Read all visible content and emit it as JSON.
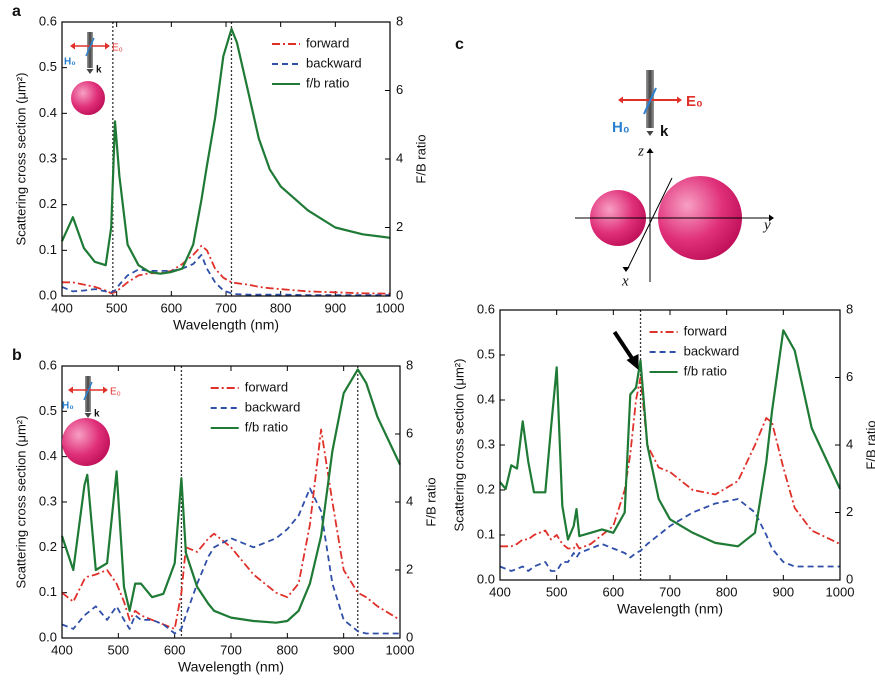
{
  "chart_data": [
    {
      "type": "line",
      "panel": "a",
      "xlabel": "Wavelength (nm)",
      "ylabel": "Scattering cross section (μm²)",
      "y2label": "F/B ratio",
      "legend": "upper right",
      "vlines": [
        493,
        710
      ],
      "annotations": [
        "E₀",
        "H₀",
        "k"
      ],
      "x": [
        400,
        420,
        440,
        460,
        480,
        490,
        497,
        505,
        520,
        540,
        560,
        580,
        600,
        620,
        640,
        655,
        665,
        680,
        695,
        710,
        720,
        740,
        760,
        780,
        800,
        850,
        900,
        950,
        1000
      ],
      "series": [
        {
          "name": "forward",
          "color": "#e0302a",
          "dash": "dashdot",
          "values": [
            0.03,
            0.03,
            0.025,
            0.02,
            0.012,
            0.006,
            0.008,
            0.015,
            0.03,
            0.045,
            0.05,
            0.05,
            0.055,
            0.07,
            0.09,
            0.11,
            0.1,
            0.06,
            0.04,
            0.03,
            0.028,
            0.025,
            0.02,
            0.017,
            0.015,
            0.01,
            0.008,
            0.006,
            0.005
          ]
        },
        {
          "name": "backward",
          "color": "#2f4fa8",
          "dash": "dashed",
          "values": [
            0.02,
            0.01,
            0.012,
            0.015,
            0.01,
            0.008,
            0.012,
            0.025,
            0.045,
            0.058,
            0.055,
            0.055,
            0.055,
            0.06,
            0.07,
            0.09,
            0.06,
            0.03,
            0.012,
            0.006,
            0.004,
            0.003,
            0.003,
            0.003,
            0.003,
            0.002,
            0.002,
            0.002,
            0.002
          ]
        },
        {
          "name": "f/b ratio",
          "color": "#1e7a35",
          "dash": "solid",
          "axis": "y2",
          "values": [
            1.6,
            2.3,
            1.4,
            1.0,
            0.9,
            2.0,
            5.1,
            3.5,
            1.5,
            0.9,
            0.7,
            0.65,
            0.7,
            0.8,
            1.5,
            2.8,
            3.8,
            5.2,
            7.0,
            7.8,
            7.4,
            6.0,
            4.6,
            3.7,
            3.2,
            2.5,
            2.0,
            1.8,
            1.7
          ]
        }
      ],
      "xlim": [
        400,
        1000
      ],
      "xticks": [
        400,
        500,
        600,
        700,
        800,
        900,
        1000
      ],
      "ylim": [
        0,
        0.6
      ],
      "yticks": [
        {
          "value": 0,
          "label": "0.0"
        },
        0.1,
        0.2,
        0.3,
        0.4,
        0.5,
        0.6
      ],
      "y2lim": [
        0,
        8
      ],
      "y2ticks": [
        0,
        2,
        4,
        6,
        8
      ]
    },
    {
      "type": "line",
      "panel": "b",
      "xlabel": "Wavelength (nm)",
      "ylabel": "Scattering cross section (μm²)",
      "y2label": "F/B ratio",
      "legend": "upper center",
      "vlines": [
        612,
        925
      ],
      "annotations": [
        "E₀",
        "H₀",
        "k"
      ],
      "x": [
        400,
        420,
        440,
        445,
        460,
        480,
        497,
        510,
        520,
        530,
        540,
        560,
        580,
        600,
        612,
        620,
        640,
        660,
        670,
        700,
        740,
        780,
        800,
        820,
        840,
        860,
        880,
        900,
        925,
        940,
        960,
        1000
      ],
      "series": [
        {
          "name": "forward",
          "color": "#e0302a",
          "dash": "dashdot",
          "values": [
            0.1,
            0.08,
            0.13,
            0.135,
            0.14,
            0.15,
            0.12,
            0.08,
            0.04,
            0.06,
            0.05,
            0.04,
            0.03,
            0.02,
            0.1,
            0.2,
            0.19,
            0.22,
            0.23,
            0.2,
            0.14,
            0.1,
            0.09,
            0.12,
            0.25,
            0.46,
            0.3,
            0.15,
            0.1,
            0.09,
            0.07,
            0.04
          ]
        },
        {
          "name": "backward",
          "color": "#2f4fa8",
          "dash": "dashed",
          "values": [
            0.03,
            0.02,
            0.05,
            0.055,
            0.07,
            0.04,
            0.07,
            0.04,
            0.02,
            0.05,
            0.04,
            0.04,
            0.03,
            0.01,
            0.02,
            0.05,
            0.12,
            0.18,
            0.2,
            0.22,
            0.2,
            0.22,
            0.24,
            0.27,
            0.33,
            0.28,
            0.12,
            0.04,
            0.015,
            0.01,
            0.01,
            0.01
          ]
        },
        {
          "name": "f/b ratio",
          "color": "#1e7a35",
          "dash": "solid",
          "axis": "y2",
          "values": [
            3.0,
            2.0,
            4.5,
            4.8,
            2.0,
            2.2,
            4.9,
            1.5,
            0.8,
            1.6,
            1.6,
            1.2,
            1.3,
            2.2,
            4.7,
            2.5,
            1.5,
            1.0,
            0.8,
            0.6,
            0.5,
            0.45,
            0.5,
            0.8,
            1.6,
            3.0,
            5.5,
            7.2,
            7.9,
            7.5,
            6.5,
            5.1
          ]
        }
      ],
      "xlim": [
        400,
        1000
      ],
      "xticks": [
        400,
        500,
        600,
        700,
        800,
        900,
        1000
      ],
      "ylim": [
        0,
        0.6
      ],
      "yticks": [
        {
          "value": 0,
          "label": "0.0"
        },
        0.1,
        0.2,
        0.3,
        0.4,
        0.5,
        0.6
      ],
      "y2lim": [
        0,
        8
      ],
      "y2ticks": [
        0,
        2,
        4,
        6,
        8
      ]
    },
    {
      "type": "line",
      "panel": "c",
      "xlabel": "Wavelength (nm)",
      "ylabel": "Scattering cross section (μm²)",
      "y2label": "F/B ratio",
      "legend": "upper center",
      "vlines": [
        648
      ],
      "annotations": [
        "E₀",
        "H₀",
        "k",
        "z",
        "y",
        "x"
      ],
      "x": [
        400,
        410,
        420,
        430,
        440,
        450,
        460,
        480,
        490,
        500,
        510,
        520,
        530,
        535,
        540,
        560,
        580,
        600,
        620,
        630,
        640,
        648,
        660,
        680,
        700,
        740,
        780,
        820,
        850,
        870,
        880,
        900,
        920,
        950,
        1000
      ],
      "series": [
        {
          "name": "forward",
          "color": "#e0302a",
          "dash": "dashdot",
          "values": [
            0.075,
            0.075,
            0.075,
            0.08,
            0.09,
            0.09,
            0.1,
            0.11,
            0.09,
            0.1,
            0.08,
            0.07,
            0.07,
            0.08,
            0.07,
            0.08,
            0.1,
            0.12,
            0.2,
            0.28,
            0.4,
            0.45,
            0.3,
            0.25,
            0.24,
            0.2,
            0.19,
            0.22,
            0.3,
            0.36,
            0.35,
            0.25,
            0.16,
            0.11,
            0.08
          ]
        },
        {
          "name": "backward",
          "color": "#2f4fa8",
          "dash": "dashed",
          "values": [
            0.03,
            0.025,
            0.02,
            0.025,
            0.03,
            0.02,
            0.03,
            0.04,
            0.02,
            0.02,
            0.04,
            0.04,
            0.06,
            0.05,
            0.06,
            0.07,
            0.08,
            0.07,
            0.06,
            0.05,
            0.06,
            0.065,
            0.08,
            0.1,
            0.12,
            0.15,
            0.17,
            0.18,
            0.15,
            0.1,
            0.07,
            0.04,
            0.03,
            0.03,
            0.03
          ]
        },
        {
          "name": "f/b ratio",
          "color": "#1e7a35",
          "dash": "solid",
          "axis": "y2",
          "values": [
            2.9,
            2.7,
            3.4,
            3.3,
            4.7,
            3.5,
            2.6,
            2.6,
            4.5,
            6.3,
            2.2,
            1.2,
            1.6,
            2.1,
            1.3,
            1.4,
            1.5,
            1.4,
            2.0,
            5.5,
            5.7,
            6.5,
            4.0,
            2.4,
            1.8,
            1.4,
            1.1,
            1.0,
            1.4,
            3.5,
            5.0,
            7.4,
            6.8,
            4.5,
            2.7
          ]
        }
      ],
      "xlim": [
        400,
        1000
      ],
      "xticks": [
        400,
        500,
        600,
        700,
        800,
        900,
        1000
      ],
      "ylim": [
        0,
        0.6
      ],
      "yticks": [
        {
          "value": 0,
          "label": "0.0"
        },
        0.1,
        0.2,
        0.3,
        0.4,
        0.5,
        0.6
      ],
      "y2lim": [
        0,
        8
      ],
      "y2ticks": [
        0,
        2,
        4,
        6,
        8
      ]
    }
  ]
}
